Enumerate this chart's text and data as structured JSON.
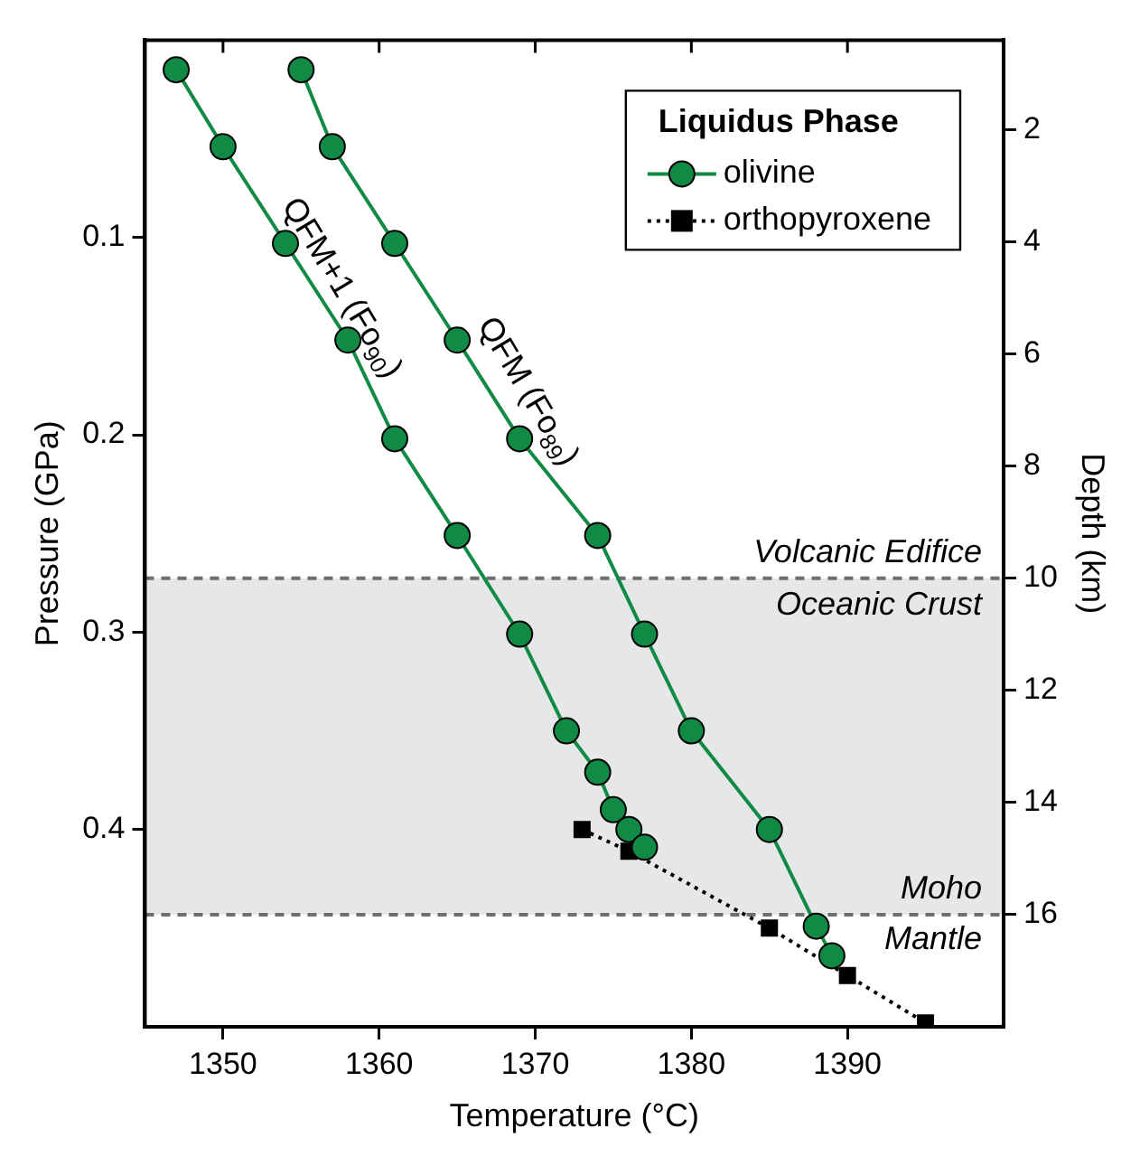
{
  "chart_data": {
    "type": "line",
    "xlabel": "Temperature (°C)",
    "ylabel": "Pressure (GPa)",
    "y2label": "Depth (km)",
    "legend_title": "Liquidus Phase",
    "xlim": [
      1345,
      1400
    ],
    "xticks": [
      1350,
      1360,
      1370,
      1380,
      1390
    ],
    "ylim": [
      0.5,
      0
    ],
    "yticks": [
      0.1,
      0.2,
      0.3,
      0.4
    ],
    "y2lim": [
      18,
      0.4
    ],
    "y2ticks": [
      2,
      4,
      6,
      8,
      10,
      12,
      14,
      16
    ],
    "grid": false,
    "legend": "top right",
    "series": [
      {
        "name": "olivine",
        "color": "#118a45",
        "marker": "circle",
        "line_style": "solid",
        "x": [
          1347,
          1350,
          1354,
          1358,
          1361,
          1365,
          1369,
          1372,
          1374,
          1375,
          1376,
          1377
        ],
        "values": [
          0.015,
          0.054,
          0.103,
          0.152,
          0.202,
          0.251,
          0.301,
          0.35,
          0.371,
          0.39,
          0.4,
          0.409
        ]
      },
      {
        "color": "#118a45",
        "marker": "circle",
        "line_style": "solid",
        "x": [
          1355,
          1357,
          1361,
          1365,
          1369,
          1374,
          1377,
          1380,
          1385,
          1388,
          1389
        ],
        "values": [
          0.015,
          0.054,
          0.103,
          0.152,
          0.202,
          0.251,
          0.301,
          0.35,
          0.4,
          0.449,
          0.464
        ]
      },
      {
        "name": "orthopyroxene",
        "color": "#000000",
        "marker": "square",
        "line_style": "dotted",
        "x": [
          1373,
          1376,
          1385,
          1390,
          1395
        ],
        "values": [
          0.4,
          0.411,
          0.45,
          0.474,
          0.498
        ]
      }
    ],
    "bands": [
      {
        "axis": "y2",
        "from": 10,
        "to": 16,
        "label": "Oceanic Crust",
        "color": "#e6e7e9"
      }
    ],
    "ref_lines": [
      {
        "axis": "y2",
        "value": 10,
        "label": "Volcanic Edifice",
        "color": "#6d6e70",
        "line_style": "dashed"
      },
      {
        "axis": "y2",
        "value": 16,
        "label": "Moho",
        "color": "#6d6e70",
        "line_style": "dashed"
      }
    ],
    "annotations": [
      "QFM+1 (Fo$_{90}$)",
      "QFM (Fo$_{89}$)",
      "Mantle"
    ]
  }
}
